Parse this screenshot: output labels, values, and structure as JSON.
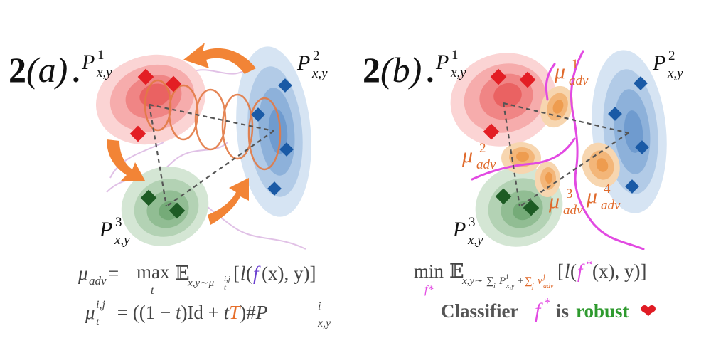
{
  "panel_a": {
    "label_num": "2",
    "label_letter": "(a)",
    "label_dot": ".",
    "dist_1": {
      "base": "P",
      "sub": "x,y",
      "sup": "1"
    },
    "dist_2": {
      "base": "P",
      "sub": "x,y",
      "sup": "2"
    },
    "dist_3": {
      "base": "P",
      "sub": "x,y",
      "sup": "3"
    },
    "eq1": {
      "lhs": "μ",
      "lhs_sub": "adv",
      "eq": " = ",
      "max": "max",
      "max_sub": "t",
      "expect": "𝔼",
      "expect_sub": "x,y∼μ",
      "expect_sub_sub": "t",
      "expect_sub_sup": "i,j",
      "open": "[",
      "l": "l",
      "paren_open": "(",
      "f": "f",
      "arg": "(x), y)]"
    },
    "eq2": {
      "lhs": "μ",
      "lhs_sub": "t",
      "lhs_sup": "i,j",
      "rhs_a": " = ((1 − ",
      "t1": "t",
      "rhs_b": ")Id + ",
      "t2": "t",
      "T": "T",
      "rhs_c": ")#",
      "P": "P",
      "P_sub": "x,y",
      "P_sup": "i"
    }
  },
  "panel_b": {
    "label_num": "2",
    "label_letter": "(b)",
    "label_dot": ".",
    "dist_1": {
      "base": "P",
      "sub": "x,y",
      "sup": "1"
    },
    "dist_2": {
      "base": "P",
      "sub": "x,y",
      "sup": "2"
    },
    "dist_3": {
      "base": "P",
      "sub": "x,y",
      "sup": "3"
    },
    "adv_1": {
      "base": "μ",
      "sub": "adv",
      "sup": "1"
    },
    "adv_2": {
      "base": "μ",
      "sub": "adv",
      "sup": "2"
    },
    "adv_3": {
      "base": "μ",
      "sub": "adv",
      "sup": "3"
    },
    "adv_4": {
      "base": "μ",
      "sub": "adv",
      "sup": "4"
    },
    "eq": {
      "min": "min",
      "min_sub": "f*",
      "expect": "𝔼",
      "sub_a": "x,y∼",
      "sum1": "∑",
      "sum1_sub": "i",
      "P": "P",
      "P_sub": "x,y",
      "P_sup": "i",
      "plus": "+",
      "sum2": "∑",
      "sum2_sub": "j",
      "nu": "ν",
      "nu_sub": "adv",
      "nu_sup": "j",
      "open": "[",
      "l": "l",
      "paren_open": "(",
      "f": "f",
      "f_sup": "*",
      "arg": "(x), y)]"
    },
    "caption": {
      "word1": "Classifier",
      "f": "f",
      "f_sup": "*",
      "word2": "is",
      "word3": "robust",
      "heart": "❤"
    }
  },
  "colors": {
    "red": "#e8282b",
    "blue": "#1a5aa6",
    "green": "#1d6a2a",
    "orange": "#e66e2a",
    "magenta": "#e24ae2",
    "gray_text": "#555555",
    "robust_green": "#2e9a2e"
  }
}
